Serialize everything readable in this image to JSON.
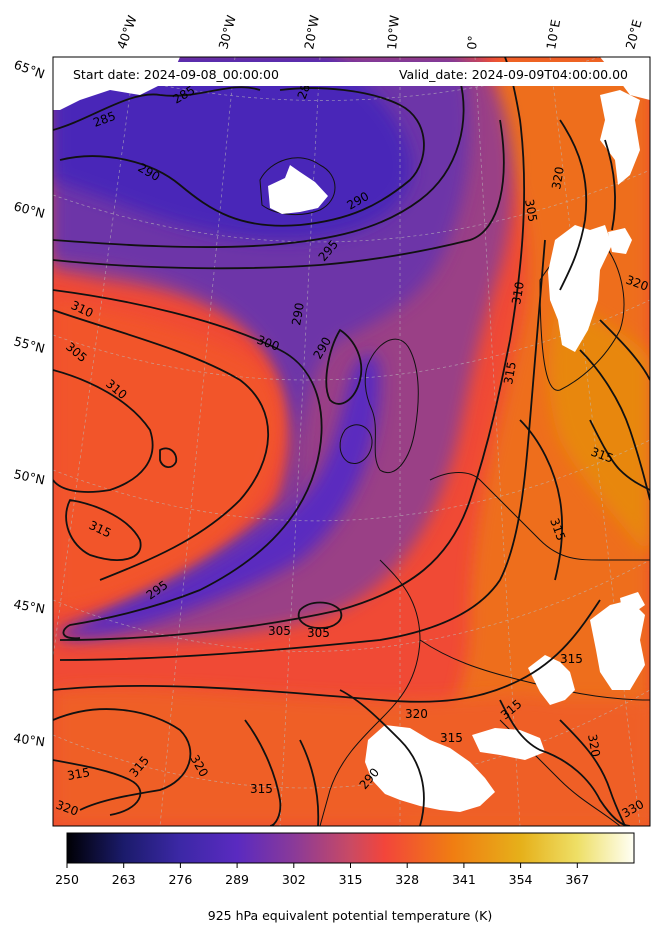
{
  "header": {
    "start_date": "Start date: 2024-09-08_00:00:00",
    "valid_date": "Valid_date: 2024-09-09T04:00:00.00"
  },
  "map": {
    "longitude_labels": [
      "40°W",
      "30°W",
      "20°W",
      "10°W",
      "0°",
      "10°E",
      "20°E"
    ],
    "latitude_labels": [
      "65°N",
      "60°N",
      "55°N",
      "50°N",
      "45°N",
      "40°N"
    ],
    "contour_labels": [
      "285",
      "285",
      "285",
      "290",
      "290",
      "290",
      "295",
      "295",
      "300",
      "305",
      "305",
      "305",
      "305",
      "310",
      "310",
      "310",
      "315",
      "315",
      "315",
      "315",
      "315",
      "315",
      "315",
      "315",
      "315",
      "320",
      "320",
      "320",
      "320",
      "320",
      "320",
      "330",
      "315",
      "290",
      "290"
    ]
  },
  "colorbar": {
    "ticks": [
      "250",
      "263",
      "276",
      "289",
      "302",
      "315",
      "328",
      "341",
      "354",
      "367"
    ],
    "title": "925 hPa equivalent potential temperature (K)",
    "colors": [
      "#000004",
      "#1b1b6b",
      "#3c28a6",
      "#5a2ac0",
      "#8a3a99",
      "#c94a64",
      "#f2453b",
      "#f07d12",
      "#e6b01a",
      "#eedf66",
      "#fffff5"
    ]
  },
  "fill_colors": {
    "deep_purple": "#4a26b8",
    "purple": "#6d34a8",
    "magenta": "#9a3f86",
    "red_orange": "#f04a35",
    "orange": "#ef6a1f",
    "dark_orange": "#e8870d",
    "masked": "#ffffff"
  }
}
